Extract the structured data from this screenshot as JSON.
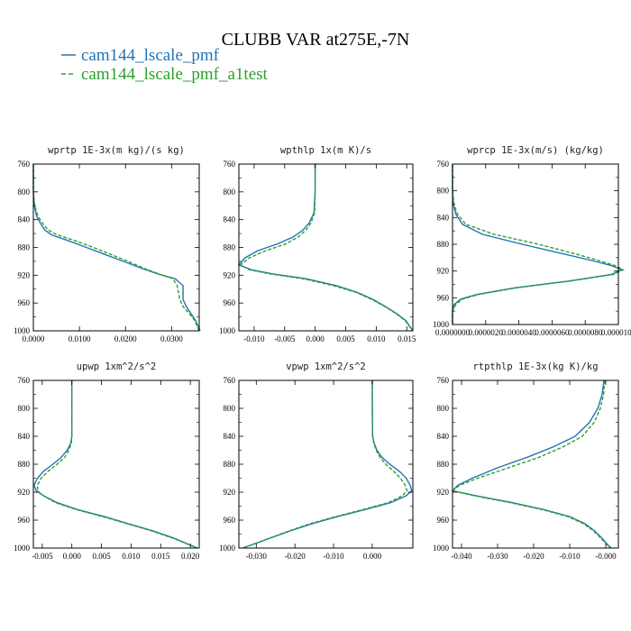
{
  "title": "CLUBB VAR at275E,-7N",
  "colors": {
    "series1": "#2274b6",
    "series2": "#2ca02c",
    "axis": "#000000"
  },
  "legend": [
    {
      "name": "cam144_lscale_pmf",
      "color": "#2274b6",
      "dash": "solid"
    },
    {
      "name": "cam144_lscale_pmf_a1test",
      "color": "#2ca02c",
      "dash": "dashed"
    }
  ],
  "chart_data": [
    {
      "type": "line",
      "title": "wprtp  1E-3x(m kg)/(s kg)",
      "xlim": [
        0,
        0.036
      ],
      "ylim": [
        760,
        1000
      ],
      "y_inverted": true,
      "xticks": [
        "0.0000",
        "0.0100",
        "0.0200",
        "0.0300"
      ],
      "xtick_values": [
        0,
        0.01,
        0.02,
        0.03
      ],
      "yticks": [
        760,
        800,
        840,
        880,
        920,
        960,
        1000
      ],
      "series": [
        {
          "name": "cam144_lscale_pmf",
          "y": [
            760,
            800,
            820,
            835,
            845,
            855,
            862,
            870,
            880,
            890,
            900,
            910,
            918,
            925,
            935,
            945,
            955,
            965,
            975,
            985,
            1000
          ],
          "x": [
            0,
            0,
            0.0002,
            0.0007,
            0.0015,
            0.0025,
            0.004,
            0.0075,
            0.0115,
            0.0155,
            0.0195,
            0.0235,
            0.027,
            0.0308,
            0.0325,
            0.0325,
            0.0325,
            0.0332,
            0.0342,
            0.0352,
            0.0362
          ]
        },
        {
          "name": "cam144_lscale_pmf_a1test",
          "y": [
            760,
            800,
            820,
            835,
            845,
            855,
            862,
            870,
            880,
            890,
            900,
            910,
            918,
            925,
            935,
            945,
            955,
            965,
            975,
            985,
            1000
          ],
          "x": [
            0,
            0,
            0.0003,
            0.001,
            0.002,
            0.0032,
            0.0052,
            0.009,
            0.013,
            0.0168,
            0.0205,
            0.024,
            0.0272,
            0.0303,
            0.0312,
            0.0315,
            0.0318,
            0.0325,
            0.0338,
            0.035,
            0.036
          ]
        }
      ]
    },
    {
      "type": "line",
      "title": "wpthlp  1x(m K)/s",
      "xlim": [
        -0.0125,
        0.016
      ],
      "ylim": [
        760,
        1000
      ],
      "y_inverted": true,
      "xticks": [
        "-0.010",
        "-0.005",
        "0.000",
        "0.005",
        "0.010",
        "0.015"
      ],
      "xtick_values": [
        -0.01,
        -0.005,
        0,
        0.005,
        0.01,
        0.015
      ],
      "yticks": [
        760,
        800,
        840,
        880,
        920,
        960,
        1000
      ],
      "series": [
        {
          "name": "cam144_lscale_pmf",
          "y": [
            760,
            800,
            830,
            845,
            855,
            865,
            875,
            885,
            895,
            905,
            912,
            918,
            925,
            935,
            945,
            955,
            965,
            975,
            985,
            1000
          ],
          "x": [
            0,
            0,
            -0.0002,
            -0.001,
            -0.002,
            -0.0036,
            -0.0062,
            -0.0095,
            -0.0115,
            -0.0125,
            -0.0105,
            -0.007,
            -0.0015,
            0.0035,
            0.007,
            0.0095,
            0.0115,
            0.0133,
            0.0148,
            0.016
          ]
        },
        {
          "name": "cam144_lscale_pmf_a1test",
          "y": [
            760,
            800,
            830,
            845,
            855,
            865,
            875,
            885,
            895,
            905,
            912,
            918,
            925,
            935,
            945,
            955,
            965,
            975,
            985,
            1000
          ],
          "x": [
            0,
            0,
            -0.0001,
            -0.0007,
            -0.0015,
            -0.0028,
            -0.0048,
            -0.0082,
            -0.0108,
            -0.0122,
            -0.0108,
            -0.0075,
            -0.002,
            0.003,
            0.0068,
            0.0093,
            0.0114,
            0.0132,
            0.0147,
            0.016
          ]
        }
      ]
    },
    {
      "type": "line",
      "title": "wprcp  1E-3x(m/s) (kg/kg)",
      "xlim": [
        0,
        1e-05
      ],
      "ylim": [
        760,
        1000
      ],
      "y_inverted": true,
      "xticks": [
        "0.0000000",
        "0.0000020",
        "0.0000040",
        "0.0000060",
        "0.0000080",
        "0.0000100"
      ],
      "xtick_values": [
        0,
        2e-06,
        4e-06,
        6e-06,
        8e-06,
        1e-05
      ],
      "yticks": [
        760,
        800,
        840,
        880,
        920,
        960,
        1000
      ],
      "series": [
        {
          "name": "cam144_lscale_pmf",
          "y": [
            760,
            800,
            820,
            835,
            850,
            865,
            880,
            895,
            905,
            912,
            918,
            925,
            935,
            945,
            955,
            962,
            970,
            980,
            990,
            1000
          ],
          "x": [
            0,
            0,
            5e-08,
            2e-07,
            6e-07,
            1.8e-06,
            4.2e-06,
            6.8e-06,
            8.5e-06,
            9.6e-06,
            1.02e-05,
            9.6e-06,
            7e-06,
            3.8e-06,
            1.5e-06,
            5e-07,
            1e-07,
            0,
            0,
            0
          ]
        },
        {
          "name": "cam144_lscale_pmf_a1test",
          "y": [
            760,
            800,
            820,
            835,
            850,
            865,
            880,
            895,
            905,
            912,
            918,
            925,
            935,
            945,
            955,
            962,
            970,
            980,
            990,
            1000
          ],
          "x": [
            0,
            0,
            8e-08,
            3e-07,
            8e-07,
            2.5e-06,
            5.2e-06,
            7.5e-06,
            8.9e-06,
            9.8e-06,
            1.03e-05,
            9.7e-06,
            7.1e-06,
            3.9e-06,
            1.6e-06,
            6e-07,
            2e-07,
            0,
            0,
            0
          ]
        }
      ]
    },
    {
      "type": "line",
      "title": "upwp  1xm^2/s^2",
      "xlim": [
        -0.0065,
        0.0215
      ],
      "ylim": [
        760,
        1000
      ],
      "y_inverted": true,
      "xticks": [
        "-0.005",
        "0.000",
        "0.005",
        "0.010",
        "0.015",
        "0.020"
      ],
      "xtick_values": [
        -0.005,
        0,
        0.005,
        0.01,
        0.015,
        0.02
      ],
      "yticks": [
        760,
        800,
        840,
        880,
        920,
        960,
        1000
      ],
      "series": [
        {
          "name": "cam144_lscale_pmf",
          "y": [
            760,
            800,
            840,
            850,
            860,
            870,
            880,
            890,
            900,
            910,
            918,
            925,
            935,
            945,
            955,
            965,
            975,
            985,
            995,
            1000
          ],
          "x": [
            0,
            0,
            0,
            -0.0002,
            -0.0008,
            -0.0018,
            -0.0032,
            -0.0048,
            -0.0058,
            -0.0064,
            -0.006,
            -0.0048,
            -0.0025,
            0.001,
            0.0055,
            0.0095,
            0.0135,
            0.017,
            0.0198,
            0.0212
          ]
        },
        {
          "name": "cam144_lscale_pmf_a1test",
          "y": [
            760,
            800,
            840,
            850,
            860,
            870,
            880,
            890,
            900,
            910,
            918,
            925,
            935,
            945,
            955,
            965,
            975,
            985,
            995,
            1000
          ],
          "x": [
            0,
            0,
            0,
            -0.0001,
            -0.0005,
            -0.0012,
            -0.0025,
            -0.004,
            -0.0052,
            -0.0058,
            -0.0058,
            -0.0048,
            -0.0028,
            0.0008,
            0.0052,
            0.0093,
            0.0133,
            0.0168,
            0.0197,
            0.0211
          ]
        }
      ]
    },
    {
      "type": "line",
      "title": "vpwp  1xm^2/s^2",
      "xlim": [
        -0.0345,
        0.0105
      ],
      "ylim": [
        760,
        1000
      ],
      "y_inverted": true,
      "xticks": [
        "-0.030",
        "-0.020",
        "-0.010",
        "0.000"
      ],
      "xtick_values": [
        -0.03,
        -0.02,
        -0.01,
        0
      ],
      "yticks": [
        760,
        800,
        840,
        880,
        920,
        960,
        1000
      ],
      "series": [
        {
          "name": "cam144_lscale_pmf",
          "y": [
            760,
            800,
            840,
            850,
            860,
            870,
            880,
            890,
            900,
            910,
            918,
            925,
            935,
            945,
            955,
            965,
            975,
            985,
            995,
            1000
          ],
          "x": [
            0,
            0,
            0.0001,
            0.0005,
            0.0012,
            0.0025,
            0.0045,
            0.007,
            0.0088,
            0.0098,
            0.0102,
            0.0088,
            0.0048,
            -0.002,
            -0.009,
            -0.0155,
            -0.021,
            -0.026,
            -0.031,
            -0.0335
          ]
        },
        {
          "name": "cam144_lscale_pmf_a1test",
          "y": [
            760,
            800,
            840,
            850,
            860,
            870,
            880,
            890,
            900,
            910,
            918,
            925,
            935,
            945,
            955,
            965,
            975,
            985,
            995,
            1000
          ],
          "x": [
            0,
            0,
            0.0001,
            0.0004,
            0.001,
            0.002,
            0.0035,
            0.0055,
            0.0073,
            0.0085,
            0.009,
            0.0078,
            0.0042,
            -0.0025,
            -0.0095,
            -0.016,
            -0.0213,
            -0.0262,
            -0.031,
            -0.0335
          ]
        }
      ]
    },
    {
      "type": "line",
      "title": "rtpthlp  1E-3x(kg K)/kg",
      "xlim": [
        -0.0425,
        0.0035
      ],
      "ylim": [
        760,
        1000
      ],
      "y_inverted": true,
      "xticks": [
        "-0.040",
        "-0.030",
        "-0.020",
        "-0.010",
        "-0.000"
      ],
      "xtick_values": [
        -0.04,
        -0.03,
        -0.02,
        -0.01,
        0
      ],
      "yticks": [
        760,
        800,
        840,
        880,
        920,
        960,
        1000
      ],
      "series": [
        {
          "name": "cam144_lscale_pmf",
          "y": [
            760,
            780,
            800,
            820,
            840,
            855,
            870,
            885,
            900,
            910,
            918,
            925,
            935,
            945,
            955,
            965,
            975,
            985,
            995,
            1000
          ],
          "x": [
            -0.0005,
            -0.001,
            -0.0022,
            -0.0045,
            -0.0085,
            -0.0145,
            -0.0218,
            -0.03,
            -0.037,
            -0.041,
            -0.0425,
            -0.036,
            -0.026,
            -0.017,
            -0.01,
            -0.0058,
            -0.0032,
            -0.0012,
            0.0005,
            0.0015
          ]
        },
        {
          "name": "cam144_lscale_pmf_a1test",
          "y": [
            760,
            780,
            800,
            820,
            840,
            855,
            870,
            885,
            900,
            910,
            918,
            925,
            935,
            945,
            955,
            965,
            975,
            985,
            995,
            1000
          ],
          "x": [
            -0.0003,
            -0.0006,
            -0.0015,
            -0.0032,
            -0.0065,
            -0.0118,
            -0.0185,
            -0.027,
            -0.0355,
            -0.0405,
            -0.0425,
            -0.0365,
            -0.0265,
            -0.0175,
            -0.0105,
            -0.0062,
            -0.0035,
            -0.0015,
            0.0003,
            0.0013
          ]
        }
      ]
    }
  ]
}
